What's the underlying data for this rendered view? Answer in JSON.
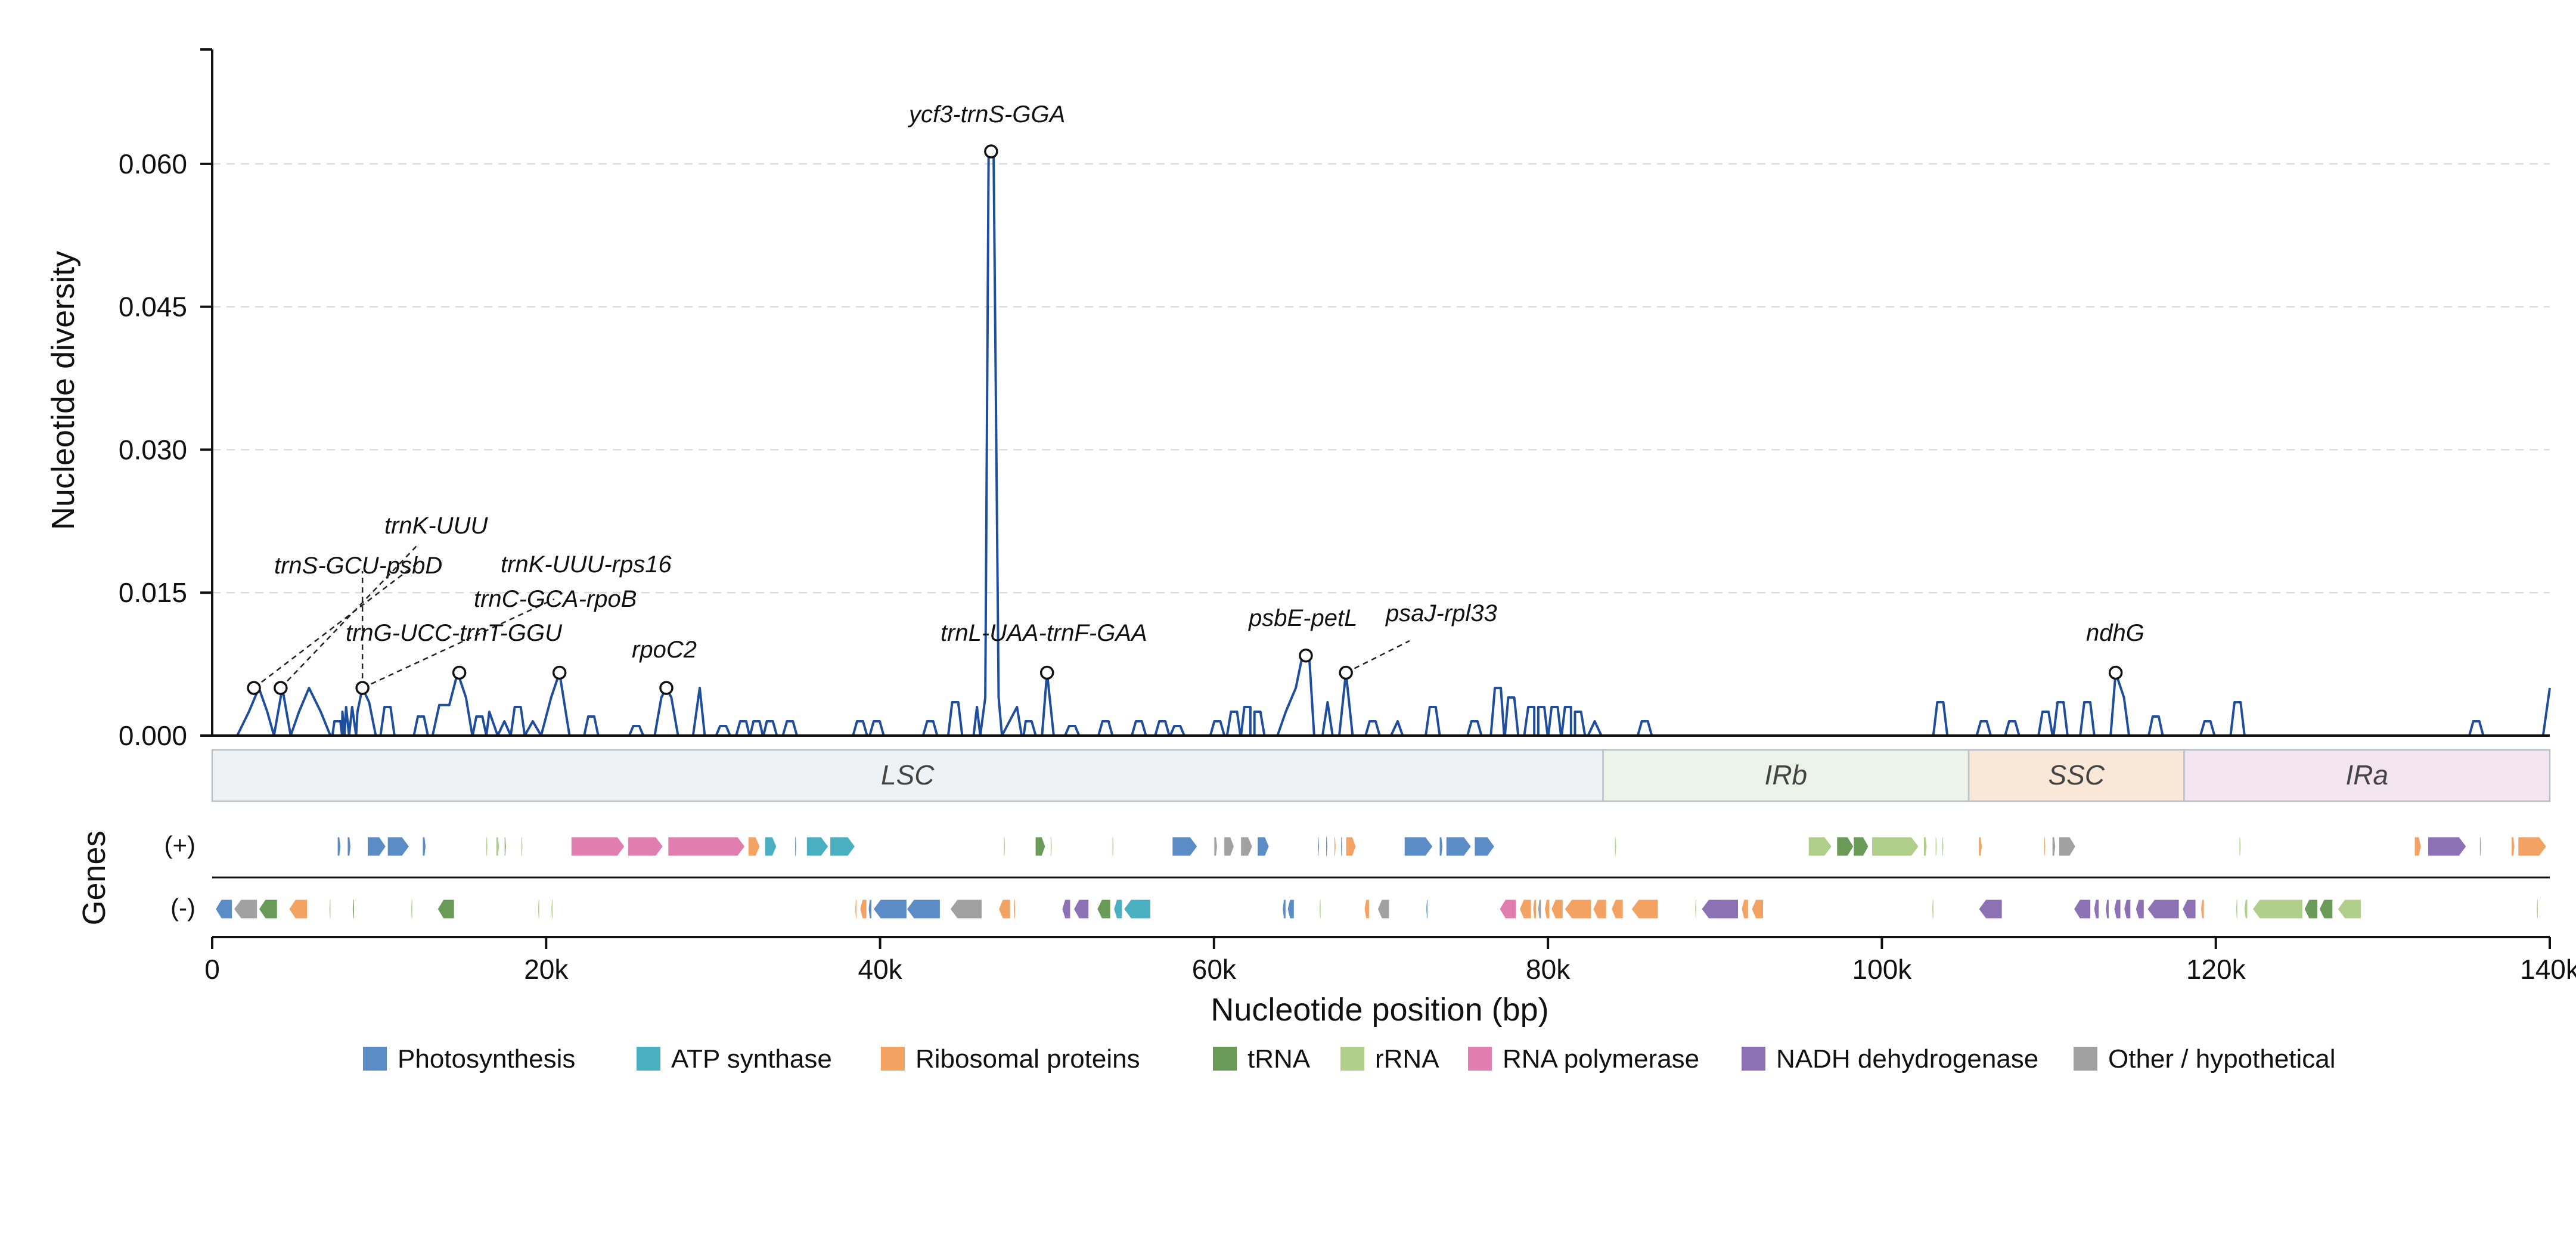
{
  "chart_data": {
    "type": "line",
    "ylabel": "Nucleotide diversity",
    "xlabel": "Nucleotide position (bp)",
    "ylim": [
      0,
      0.072
    ],
    "xlim": [
      0,
      140000
    ],
    "yticks": [
      {
        "value": 0.0,
        "label": "0.000"
      },
      {
        "value": 0.015,
        "label": "0.015"
      },
      {
        "value": 0.03,
        "label": "0.030"
      },
      {
        "value": 0.045,
        "label": "0.045"
      },
      {
        "value": 0.06,
        "label": "0.060"
      }
    ],
    "xticks": [
      {
        "value": 0,
        "label": "0"
      },
      {
        "value": 20000,
        "label": "20k"
      },
      {
        "value": 40000,
        "label": "40k"
      },
      {
        "value": 60000,
        "label": "60k"
      },
      {
        "value": 80000,
        "label": "80k"
      },
      {
        "value": 100000,
        "label": "100k"
      },
      {
        "value": 120000,
        "label": "120k"
      },
      {
        "value": 140000,
        "label": "140k"
      }
    ],
    "grid": "y-dashed",
    "line_color": "#1f4e9c",
    "series": [
      {
        "values": [
          [
            1500,
            0
          ],
          [
            2200,
            0.0025
          ],
          [
            2800,
            0.005
          ],
          [
            3300,
            0.0025
          ],
          [
            3700,
            0
          ],
          [
            4200,
            0.005
          ],
          [
            4700,
            0
          ],
          [
            5200,
            0.0025
          ],
          [
            5800,
            0.005
          ],
          [
            6500,
            0.0025
          ],
          [
            7200,
            0
          ],
          [
            7800,
            0.0025
          ],
          [
            8200,
            0
          ],
          [
            8700,
            0.0025
          ],
          [
            9000,
            0.005
          ],
          [
            9400,
            0.0035
          ],
          [
            9800,
            0
          ],
          [
            13200,
            0
          ],
          [
            13600,
            0.0032
          ],
          [
            14200,
            0.0032
          ],
          [
            14700,
            0.0066
          ],
          [
            15200,
            0.004
          ],
          [
            15600,
            0
          ],
          [
            16600,
            0.0025
          ],
          [
            17100,
            0
          ],
          [
            17500,
            0.0015
          ],
          [
            19200,
            0.0015
          ],
          [
            19700,
            0
          ],
          [
            20300,
            0.004
          ],
          [
            20800,
            0.0066
          ],
          [
            21400,
            0
          ],
          [
            26500,
            0
          ],
          [
            26900,
            0.004
          ],
          [
            27200,
            0.005
          ],
          [
            27500,
            0.004
          ],
          [
            27900,
            0
          ],
          [
            28800,
            0
          ],
          [
            29200,
            0.005
          ],
          [
            29500,
            0
          ],
          [
            45600,
            0
          ],
          [
            45800,
            0.003
          ],
          [
            46000,
            0
          ],
          [
            46300,
            0.004
          ],
          [
            46500,
            0.061
          ],
          [
            46800,
            0.061
          ],
          [
            47100,
            0.004
          ],
          [
            47300,
            0
          ],
          [
            48200,
            0.003
          ],
          [
            48600,
            0
          ],
          [
            49700,
            0
          ],
          [
            50000,
            0.0066
          ],
          [
            50400,
            0
          ],
          [
            63800,
            0
          ],
          [
            64300,
            0.0025
          ],
          [
            64900,
            0.005
          ],
          [
            65300,
            0.0084
          ],
          [
            65700,
            0.0084
          ],
          [
            66000,
            0
          ],
          [
            66500,
            0
          ],
          [
            66800,
            0.0035
          ],
          [
            67100,
            0
          ],
          [
            67500,
            0
          ],
          [
            67900,
            0.0066
          ],
          [
            68300,
            0
          ],
          [
            70600,
            0
          ],
          [
            71000,
            0.0015
          ],
          [
            71300,
            0
          ],
          [
            82400,
            0
          ],
          [
            82800,
            0.0015
          ],
          [
            83200,
            0
          ],
          [
            113700,
            0
          ],
          [
            114000,
            0.0066
          ],
          [
            114500,
            0.004
          ],
          [
            114800,
            0
          ],
          [
            139600,
            0
          ],
          [
            140000,
            0.005
          ]
        ]
      }
    ],
    "minor_peaks": [
      [
        7500,
        0.0015
      ],
      [
        8200,
        0.003
      ],
      [
        10500,
        0.003
      ],
      [
        12500,
        0.002
      ],
      [
        16000,
        0.002
      ],
      [
        18300,
        0.003
      ],
      [
        22700,
        0.002
      ],
      [
        25400,
        0.001
      ],
      [
        30600,
        0.001
      ],
      [
        31800,
        0.0015
      ],
      [
        32600,
        0.0015
      ],
      [
        33400,
        0.0015
      ],
      [
        34600,
        0.0015
      ],
      [
        38800,
        0.0015
      ],
      [
        39800,
        0.0015
      ],
      [
        43000,
        0.0015
      ],
      [
        44500,
        0.0035
      ],
      [
        48900,
        0.0015
      ],
      [
        51500,
        0.001
      ],
      [
        53500,
        0.0015
      ],
      [
        55500,
        0.0015
      ],
      [
        56900,
        0.0015
      ],
      [
        57800,
        0.001
      ],
      [
        60200,
        0.0015
      ],
      [
        61200,
        0.0025
      ],
      [
        62000,
        0.003
      ],
      [
        62600,
        0.0025
      ],
      [
        69500,
        0.0015
      ],
      [
        73100,
        0.003
      ],
      [
        75600,
        0.0015
      ],
      [
        77000,
        0.005
      ],
      [
        77800,
        0.004
      ],
      [
        79000,
        0.003
      ],
      [
        79600,
        0.003
      ],
      [
        80400,
        0.003
      ],
      [
        81200,
        0.003
      ],
      [
        81800,
        0.0025
      ],
      [
        85800,
        0.0015
      ],
      [
        103500,
        0.0035
      ],
      [
        106100,
        0.0015
      ],
      [
        107800,
        0.0015
      ],
      [
        109800,
        0.0025
      ],
      [
        110700,
        0.0035
      ],
      [
        112300,
        0.0035
      ],
      [
        116400,
        0.002
      ],
      [
        119500,
        0.0015
      ],
      [
        121300,
        0.0035
      ],
      [
        135600,
        0.0015
      ]
    ],
    "peaks": [
      {
        "label": "trnS-GCU-psbD",
        "x": 2500,
        "y": 0.005
      },
      {
        "label": "trnK-UUU",
        "x": 4100,
        "y": 0.005
      },
      {
        "label": "trnC-GCA-rpoB",
        "x": 9000,
        "y": 0.005
      },
      {
        "label": "trnK-UUU-rps16",
        "x": 14800,
        "y": 0.0066
      },
      {
        "label": "trnG-UCC-trnT-GGU",
        "x": 20800,
        "y": 0.0066
      },
      {
        "label": "rpoC2",
        "x": 27200,
        "y": 0.005
      },
      {
        "label": "ycf3-trnS-GGA",
        "x": 46650,
        "y": 0.0613
      },
      {
        "label": "trnL-UAA-trnF-GAA",
        "x": 50000,
        "y": 0.0066
      },
      {
        "label": "psbE-petL",
        "x": 65500,
        "y": 0.0084
      },
      {
        "label": "psaJ-rpl33",
        "x": 67900,
        "y": 0.0066
      },
      {
        "label": "ndhG",
        "x": 114000,
        "y": 0.0066
      }
    ],
    "regions": [
      {
        "name": "LSC",
        "start": 0,
        "end": 83300,
        "fill": "#eef2f5"
      },
      {
        "name": "IRb",
        "start": 83300,
        "end": 105200,
        "fill": "#ecf3e8"
      },
      {
        "name": "SSC",
        "start": 105200,
        "end": 118100,
        "fill": "#f9e8d8"
      },
      {
        "name": "IRa",
        "start": 118100,
        "end": 140000,
        "fill": "#f3e5f1"
      }
    ],
    "genes_label": "Genes",
    "strand_labels": {
      "plus": "(+)",
      "minus": "(-)"
    },
    "legend": [
      {
        "name": "Photosynthesis",
        "color": "#5b8cc6"
      },
      {
        "name": "ATP synthase",
        "color": "#4ab0c1"
      },
      {
        "name": "Ribosomal proteins",
        "color": "#f2a263"
      },
      {
        "name": "tRNA",
        "color": "#6a9a57"
      },
      {
        "name": "rRNA",
        "color": "#afcf8b"
      },
      {
        "name": "RNA polymerase",
        "color": "#e07faf"
      },
      {
        "name": "NADH dehydrogenase",
        "color": "#8c71b4"
      },
      {
        "name": "Other / hypothetical",
        "color": "#a1a1a1"
      }
    ],
    "genes_plus": [
      [
        7500,
        7700,
        "Photosynthesis"
      ],
      [
        8100,
        8300,
        "Photosynthesis"
      ],
      [
        9300,
        10400,
        "Photosynthesis"
      ],
      [
        10500,
        11800,
        "Photosynthesis"
      ],
      [
        12600,
        12800,
        "Photosynthesis"
      ],
      [
        16400,
        16500,
        "rRNA"
      ],
      [
        17000,
        17200,
        "rRNA"
      ],
      [
        17500,
        17600,
        "tRNA"
      ],
      [
        18500,
        18600,
        "rRNA"
      ],
      [
        21500,
        24700,
        "RNA polymerase"
      ],
      [
        24900,
        27000,
        "RNA polymerase"
      ],
      [
        27300,
        31900,
        "RNA polymerase"
      ],
      [
        32100,
        32800,
        "Ribosomal proteins"
      ],
      [
        33100,
        33800,
        "ATP synthase"
      ],
      [
        34900,
        35000,
        "Photosynthesis"
      ],
      [
        35600,
        36900,
        "ATP synthase"
      ],
      [
        37000,
        38500,
        "ATP synthase"
      ],
      [
        47400,
        47500,
        "rRNA"
      ],
      [
        49300,
        49900,
        "tRNA"
      ],
      [
        50200,
        50300,
        "rRNA"
      ],
      [
        53900,
        54000,
        "rRNA"
      ],
      [
        57500,
        59000,
        "Photosynthesis"
      ],
      [
        60000,
        60200,
        "Other / hypothetical"
      ],
      [
        60600,
        61200,
        "Other / hypothetical"
      ],
      [
        61600,
        62300,
        "Other / hypothetical"
      ],
      [
        62600,
        63300,
        "Photosynthesis"
      ],
      [
        66200,
        66300,
        "Photosynthesis"
      ],
      [
        66700,
        66800,
        "Photosynthesis"
      ],
      [
        67200,
        67300,
        "Ribosomal proteins"
      ],
      [
        67600,
        67700,
        "Photosynthesis"
      ],
      [
        67900,
        68500,
        "Ribosomal proteins"
      ],
      [
        71400,
        73100,
        "Photosynthesis"
      ],
      [
        73500,
        73700,
        "Photosynthesis"
      ],
      [
        73900,
        75400,
        "Photosynthesis"
      ],
      [
        75600,
        76800,
        "Photosynthesis"
      ],
      [
        84000,
        84100,
        "rRNA"
      ],
      [
        95600,
        97000,
        "rRNA"
      ],
      [
        97300,
        98300,
        "tRNA"
      ],
      [
        98300,
        99200,
        "tRNA"
      ],
      [
        99400,
        102200,
        "rRNA"
      ],
      [
        102500,
        102700,
        "rRNA"
      ],
      [
        103200,
        103300,
        "rRNA"
      ],
      [
        103600,
        103700,
        "rRNA"
      ],
      [
        105800,
        106000,
        "Ribosomal proteins"
      ],
      [
        109700,
        109800,
        "Ribosomal proteins"
      ],
      [
        110200,
        110400,
        "Other / hypothetical"
      ],
      [
        110600,
        111600,
        "Other / hypothetical"
      ],
      [
        121400,
        121500,
        "rRNA"
      ],
      [
        131900,
        132300,
        "Ribosomal proteins"
      ],
      [
        132700,
        135000,
        "NADH dehydrogenase"
      ],
      [
        135800,
        135900,
        "Other / hypothetical"
      ],
      [
        137700,
        137900,
        "Ribosomal proteins"
      ],
      [
        138100,
        139800,
        "Ribosomal proteins"
      ]
    ],
    "genes_minus": [
      [
        200,
        1200,
        "Photosynthesis"
      ],
      [
        1300,
        2700,
        "Other / hypothetical"
      ],
      [
        2800,
        3900,
        "tRNA"
      ],
      [
        4600,
        5700,
        "Ribosomal proteins"
      ],
      [
        7000,
        7100,
        "rRNA"
      ],
      [
        8400,
        8500,
        "tRNA"
      ],
      [
        11900,
        12000,
        "rRNA"
      ],
      [
        13500,
        14500,
        "tRNA"
      ],
      [
        19500,
        19600,
        "rRNA"
      ],
      [
        20300,
        20400,
        "rRNA"
      ],
      [
        38500,
        38600,
        "Ribosomal proteins"
      ],
      [
        38800,
        39200,
        "Ribosomal proteins"
      ],
      [
        39300,
        39500,
        "Photosynthesis"
      ],
      [
        39600,
        41600,
        "Photosynthesis"
      ],
      [
        41600,
        43600,
        "Photosynthesis"
      ],
      [
        44200,
        46100,
        "Other / hypothetical"
      ],
      [
        47100,
        47800,
        "Ribosomal proteins"
      ],
      [
        48000,
        48100,
        "Ribosomal proteins"
      ],
      [
        50900,
        51400,
        "NADH dehydrogenase"
      ],
      [
        51600,
        52500,
        "NADH dehydrogenase"
      ],
      [
        53000,
        53800,
        "tRNA"
      ],
      [
        54000,
        54500,
        "ATP synthase"
      ],
      [
        54600,
        56200,
        "ATP synthase"
      ],
      [
        64100,
        64300,
        "Photosynthesis"
      ],
      [
        64400,
        64800,
        "Photosynthesis"
      ],
      [
        66300,
        66400,
        "rRNA"
      ],
      [
        69000,
        69300,
        "Ribosomal proteins"
      ],
      [
        69800,
        70500,
        "Other / hypothetical"
      ],
      [
        72700,
        72800,
        "Photosynthesis"
      ],
      [
        77100,
        78100,
        "RNA polymerase"
      ],
      [
        78300,
        79000,
        "Ribosomal proteins"
      ],
      [
        79100,
        79300,
        "Ribosomal proteins"
      ],
      [
        79400,
        79600,
        "Other / hypothetical"
      ],
      [
        79800,
        80100,
        "Ribosomal proteins"
      ],
      [
        80200,
        80900,
        "Ribosomal proteins"
      ],
      [
        81000,
        82600,
        "Ribosomal proteins"
      ],
      [
        82700,
        83500,
        "Ribosomal proteins"
      ],
      [
        83800,
        84500,
        "Ribosomal proteins"
      ],
      [
        85000,
        86600,
        "Ribosomal proteins"
      ],
      [
        88800,
        88900,
        "rRNA"
      ],
      [
        89200,
        91400,
        "NADH dehydrogenase"
      ],
      [
        91600,
        92000,
        "Ribosomal proteins"
      ],
      [
        92200,
        92900,
        "Ribosomal proteins"
      ],
      [
        103000,
        103100,
        "rRNA"
      ],
      [
        105800,
        107200,
        "NADH dehydrogenase"
      ],
      [
        111500,
        112500,
        "NADH dehydrogenase"
      ],
      [
        112700,
        113000,
        "NADH dehydrogenase"
      ],
      [
        113400,
        113600,
        "NADH dehydrogenase"
      ],
      [
        113900,
        114300,
        "NADH dehydrogenase"
      ],
      [
        114500,
        114900,
        "NADH dehydrogenase"
      ],
      [
        115200,
        115700,
        "NADH dehydrogenase"
      ],
      [
        115900,
        117800,
        "NADH dehydrogenase"
      ],
      [
        118000,
        118800,
        "NADH dehydrogenase"
      ],
      [
        119100,
        119300,
        "Ribosomal proteins"
      ],
      [
        121200,
        121300,
        "rRNA"
      ],
      [
        121700,
        121900,
        "rRNA"
      ],
      [
        122200,
        125200,
        "rRNA"
      ],
      [
        125300,
        126100,
        "tRNA"
      ],
      [
        126200,
        127000,
        "tRNA"
      ],
      [
        127300,
        128700,
        "rRNA"
      ],
      [
        139200,
        139300,
        "rRNA"
      ]
    ]
  }
}
